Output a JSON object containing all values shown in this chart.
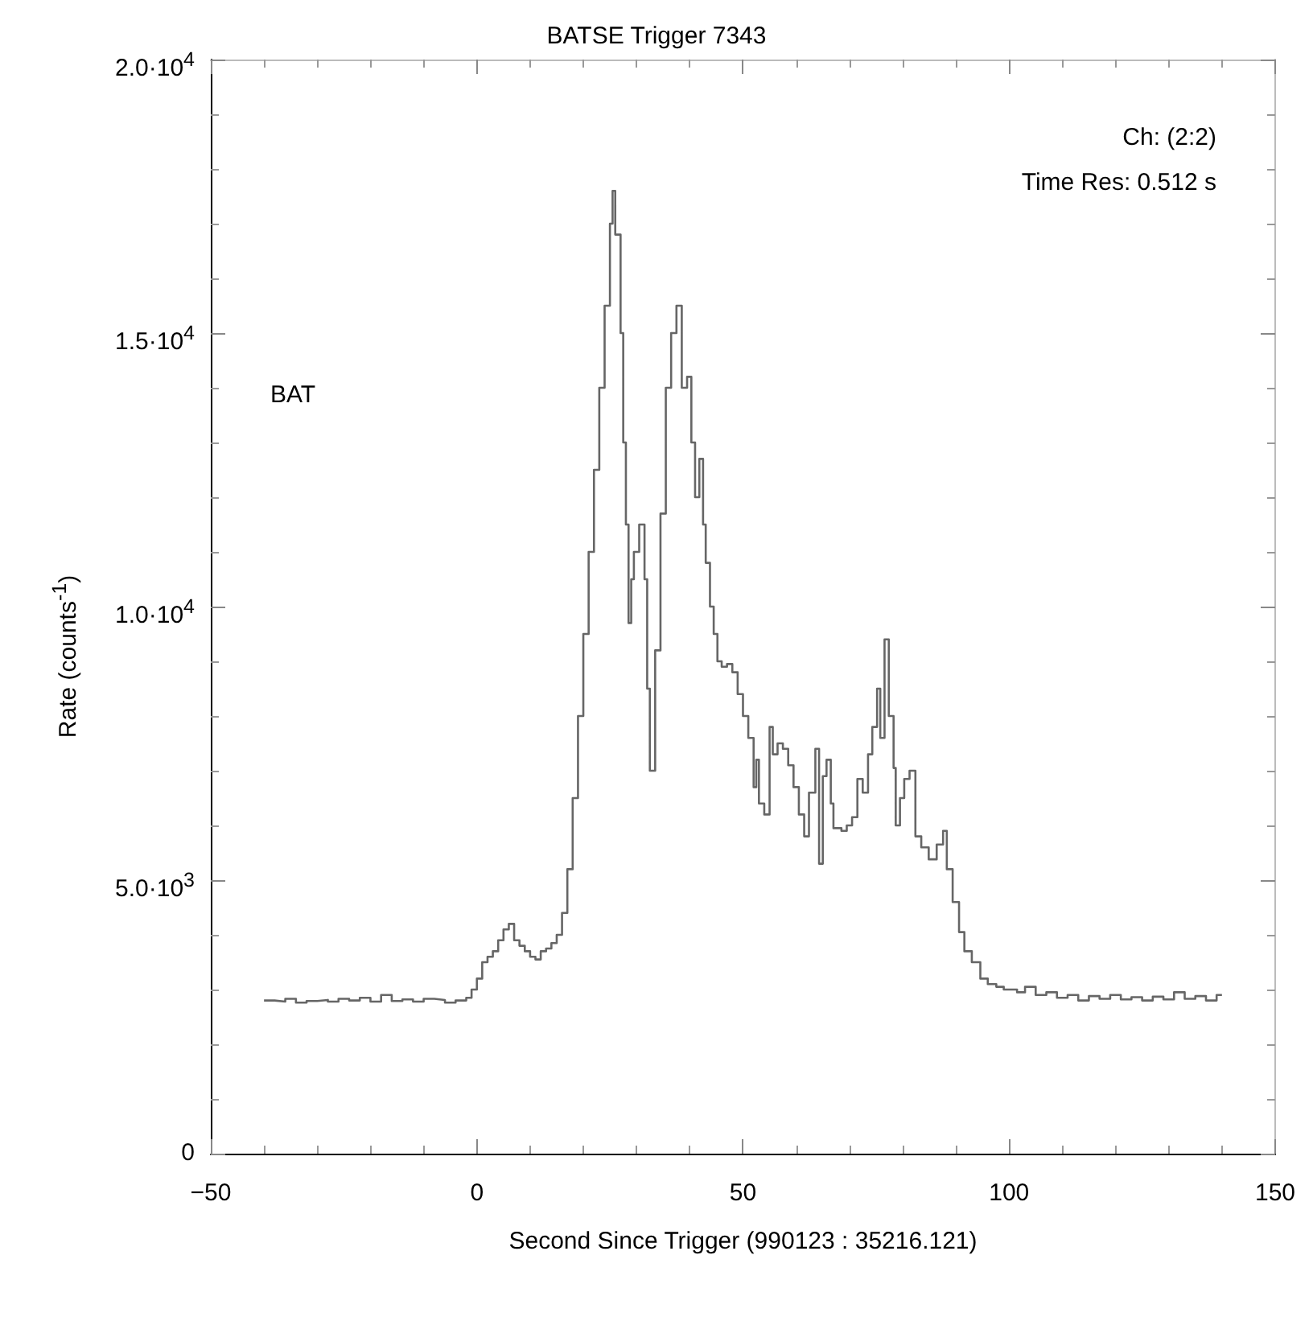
{
  "chart_data": {
    "type": "step",
    "title": "BATSE Trigger 7343",
    "xlabel": "Second Since Trigger (990123 : 35216.121)",
    "ylabel": "Rate (counts$^{-1}$)",
    "annotations": [
      "Ch: (2:2)",
      "Time Res: 0.512 s",
      "BAT"
    ],
    "xlim": [
      -50,
      150
    ],
    "xticks": [
      -50,
      0,
      50,
      100,
      150
    ],
    "ylim": [
      0,
      20000
    ],
    "yticks": [
      0,
      {
        "value": 5000,
        "label": "5.0·10$^{3}$"
      },
      {
        "value": 10000,
        "label": "1.0·10$^{4}$"
      },
      {
        "value": 15000,
        "label": "1.5·10$^{4}$"
      },
      {
        "value": 20000,
        "label": "2.0·10$^{4}$"
      }
    ],
    "grid": false,
    "marker": "none",
    "line_style": "solid",
    "series": [
      {
        "color": "#666666",
        "x": [
          -40,
          -38,
          -36,
          -34,
          -32,
          -30,
          -28,
          -26,
          -24,
          -22,
          -20,
          -18,
          -16,
          -14,
          -12,
          -10,
          -8,
          -6,
          -4,
          -2,
          -1,
          0,
          1,
          2,
          3,
          4,
          5,
          6,
          7,
          8,
          9,
          10,
          11,
          12,
          13,
          14,
          15,
          16,
          17,
          18,
          19,
          20,
          21,
          22,
          23,
          24,
          25,
          25.5,
          26,
          27,
          27.5,
          28,
          28.5,
          29,
          29.5,
          30.5,
          31.5,
          32,
          32.5,
          33.5,
          34.5,
          35.5,
          36.5,
          37.5,
          38.5,
          39.5,
          40.3,
          41,
          41.8,
          42.5,
          43,
          43.8,
          44.5,
          45.2,
          46,
          47,
          48,
          49,
          50,
          51,
          52,
          52.5,
          53,
          54,
          55,
          55.6,
          56.5,
          57.5,
          58.5,
          59.5,
          60.5,
          61.5,
          62.4,
          63.6,
          64.3,
          65,
          65.7,
          66.5,
          67,
          68.5,
          69.5,
          70.5,
          71.5,
          72.5,
          73.5,
          74.3,
          75.2,
          75.8,
          76.6,
          77.4,
          78.3,
          78.7,
          79.5,
          80.3,
          81.3,
          82.4,
          83.5,
          84.9,
          86.4,
          87.6,
          88.3,
          89.4,
          90.6,
          91.6,
          93,
          94.6,
          96,
          97.6,
          99,
          101.5,
          103,
          105,
          107,
          109,
          111,
          113,
          115,
          117,
          119,
          121,
          123,
          125,
          127,
          129,
          131,
          133,
          135,
          137,
          139,
          140
        ],
        "values": [
          2800,
          2780,
          2830,
          2760,
          2790,
          2810,
          2780,
          2830,
          2800,
          2850,
          2780,
          2900,
          2790,
          2820,
          2780,
          2830,
          2810,
          2760,
          2800,
          2850,
          3000,
          3200,
          3500,
          3600,
          3700,
          3900,
          4100,
          4200,
          3900,
          3800,
          3700,
          3600,
          3550,
          3700,
          3750,
          3850,
          4000,
          4400,
          5200,
          6500,
          8000,
          9500,
          11000,
          12500,
          14000,
          15500,
          17000,
          17600,
          16800,
          15000,
          13000,
          11500,
          9700,
          10500,
          11000,
          11500,
          10500,
          8500,
          7000,
          9200,
          11700,
          14000,
          15000,
          15500,
          14000,
          14200,
          13000,
          12000,
          12700,
          11500,
          10800,
          10000,
          9500,
          9000,
          8900,
          8950,
          8800,
          8400,
          8000,
          7600,
          6700,
          7200,
          6400,
          6200,
          7800,
          7300,
          7500,
          7400,
          7100,
          6700,
          6200,
          5800,
          6600,
          7400,
          5300,
          6900,
          7200,
          6400,
          5950,
          5900,
          6000,
          6150,
          6850,
          6600,
          7300,
          7800,
          8500,
          7600,
          9400,
          8000,
          7050,
          6000,
          6500,
          6850,
          7000,
          5800,
          5600,
          5380,
          5650,
          5900,
          5200,
          4600,
          4050,
          3700,
          3500,
          3200,
          3100,
          3050,
          3000,
          2950,
          3050,
          2900,
          2950,
          2850,
          2900,
          2800,
          2880,
          2830,
          2900,
          2820,
          2860,
          2800,
          2870,
          2820,
          2950,
          2830,
          2880,
          2800,
          2900,
          2880
        ]
      }
    ]
  }
}
